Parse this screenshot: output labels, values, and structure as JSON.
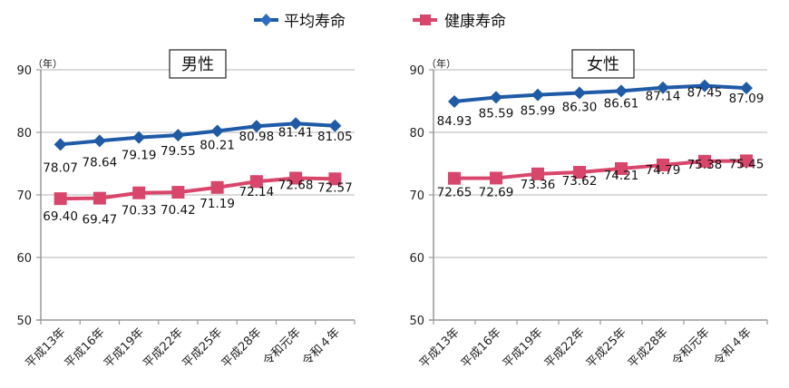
{
  "legend": {
    "items": [
      {
        "label": "平均寿命",
        "color": "#1f5aa6",
        "marker": "diamond"
      },
      {
        "label": "健康寿命",
        "color": "#d9466b",
        "marker": "square"
      }
    ]
  },
  "chart_data": [
    {
      "type": "line",
      "title": "男性",
      "ylabel": "（年）",
      "xlabel": "",
      "ylim": [
        50,
        90
      ],
      "yticks": [
        50,
        60,
        70,
        80,
        90
      ],
      "grid": true,
      "legend_position": "top",
      "categories": [
        "平成13年",
        "平成16年",
        "平成19年",
        "平成22年",
        "平成25年",
        "平成28年",
        "令和元年",
        "令和４年"
      ],
      "series": [
        {
          "name": "平均寿命",
          "color": "#1f5aa6",
          "marker": "diamond",
          "values": [
            78.07,
            78.64,
            79.19,
            79.55,
            80.21,
            80.98,
            81.41,
            81.05
          ],
          "labels": [
            "78.07",
            "78.64",
            "79.19",
            "79.55",
            "80.21",
            "80.98",
            "81.41",
            "81.05"
          ]
        },
        {
          "name": "健康寿命",
          "color": "#d9466b",
          "marker": "square",
          "values": [
            69.4,
            69.47,
            70.33,
            70.42,
            71.19,
            72.14,
            72.68,
            72.57
          ],
          "labels": [
            "69.40",
            "69.47",
            "70.33",
            "70.42",
            "71.19",
            "72.14",
            "72.68",
            "72.57"
          ]
        }
      ]
    },
    {
      "type": "line",
      "title": "女性",
      "ylabel": "（年）",
      "xlabel": "",
      "ylim": [
        50,
        90
      ],
      "yticks": [
        50,
        60,
        70,
        80,
        90
      ],
      "grid": true,
      "legend_position": "top",
      "categories": [
        "平成13年",
        "平成16年",
        "平成19年",
        "平成22年",
        "平成25年",
        "平成28年",
        "令和元年",
        "令和４年"
      ],
      "series": [
        {
          "name": "平均寿命",
          "color": "#1f5aa6",
          "marker": "diamond",
          "values": [
            84.93,
            85.59,
            85.99,
            86.3,
            86.61,
            87.14,
            87.45,
            87.09
          ],
          "labels": [
            "84.93",
            "85.59",
            "85.99",
            "86.30",
            "86.61",
            "87.14",
            "87.45",
            "87.09"
          ]
        },
        {
          "name": "健康寿命",
          "color": "#d9466b",
          "marker": "square",
          "values": [
            72.65,
            72.69,
            73.36,
            73.62,
            74.21,
            74.79,
            75.38,
            75.45
          ],
          "labels": [
            "72.65",
            "72.69",
            "73.36",
            "73.62",
            "74.21",
            "74.79",
            "75.38",
            "75.45"
          ]
        }
      ]
    }
  ]
}
